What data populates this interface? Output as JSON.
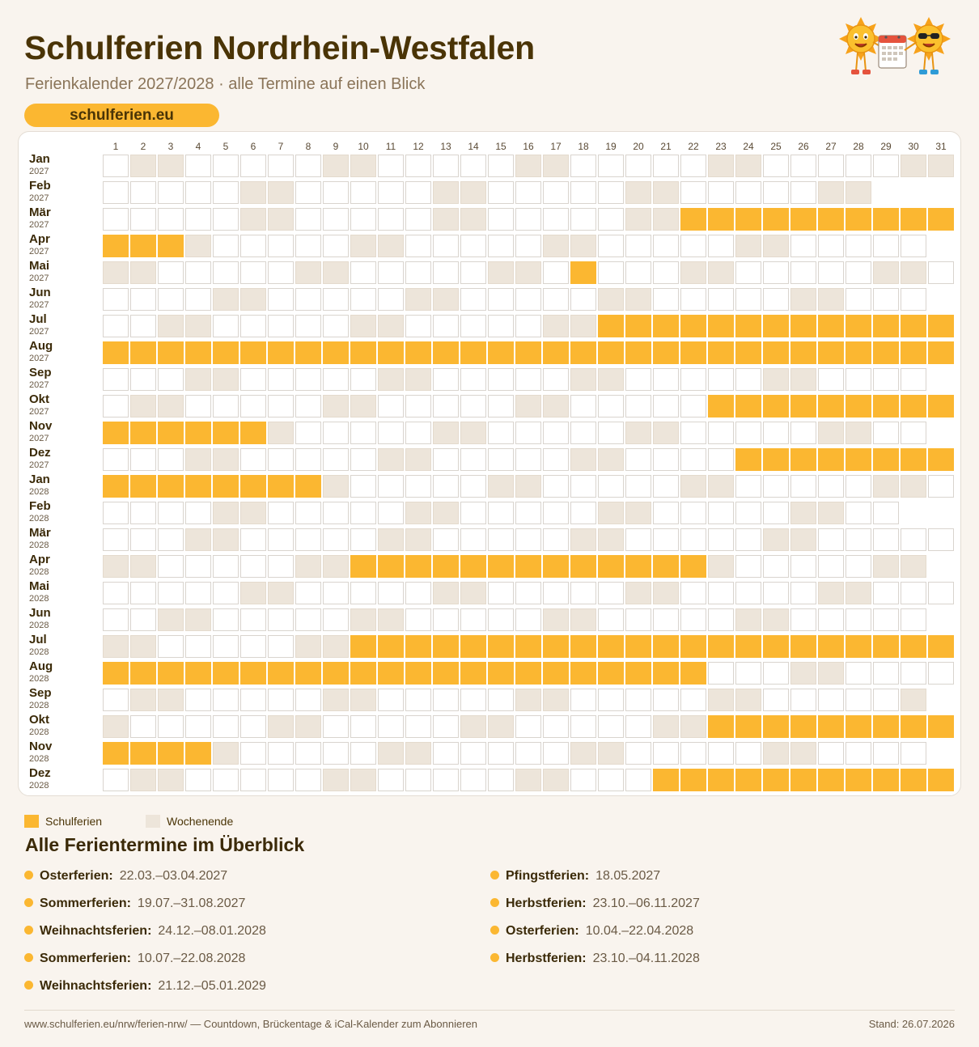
{
  "header": {
    "title": "Schulferien Nordrhein-Westfalen",
    "subtitle": "Ferienkalender 2027/2028 · alle Termine auf einen Blick",
    "brand": "schulferien.eu"
  },
  "calendar": {
    "day_numbers": [
      "1",
      "2",
      "3",
      "4",
      "5",
      "6",
      "7",
      "8",
      "9",
      "10",
      "11",
      "12",
      "13",
      "14",
      "15",
      "16",
      "17",
      "18",
      "19",
      "20",
      "21",
      "22",
      "23",
      "24",
      "25",
      "26",
      "27",
      "28",
      "29",
      "30",
      "31"
    ],
    "months": [
      {
        "name": "Jan",
        "year": "2027",
        "days": 31,
        "first_weekday": 4,
        "holidays": []
      },
      {
        "name": "Feb",
        "year": "2027",
        "days": 28,
        "first_weekday": 0,
        "holidays": []
      },
      {
        "name": "Mär",
        "year": "2027",
        "days": 31,
        "first_weekday": 0,
        "holidays": [
          [
            22,
            31
          ]
        ]
      },
      {
        "name": "Apr",
        "year": "2027",
        "days": 30,
        "first_weekday": 3,
        "holidays": [
          [
            1,
            3
          ]
        ]
      },
      {
        "name": "Mai",
        "year": "2027",
        "days": 31,
        "first_weekday": 5,
        "holidays": [
          [
            18,
            18
          ]
        ]
      },
      {
        "name": "Jun",
        "year": "2027",
        "days": 30,
        "first_weekday": 1,
        "holidays": []
      },
      {
        "name": "Jul",
        "year": "2027",
        "days": 31,
        "first_weekday": 3,
        "holidays": [
          [
            19,
            31
          ]
        ]
      },
      {
        "name": "Aug",
        "year": "2027",
        "days": 31,
        "first_weekday": 6,
        "holidays": [
          [
            1,
            31
          ]
        ]
      },
      {
        "name": "Sep",
        "year": "2027",
        "days": 30,
        "first_weekday": 2,
        "holidays": []
      },
      {
        "name": "Okt",
        "year": "2027",
        "days": 31,
        "first_weekday": 4,
        "holidays": [
          [
            23,
            31
          ]
        ]
      },
      {
        "name": "Nov",
        "year": "2027",
        "days": 30,
        "first_weekday": 0,
        "holidays": [
          [
            1,
            6
          ]
        ]
      },
      {
        "name": "Dez",
        "year": "2027",
        "days": 31,
        "first_weekday": 2,
        "holidays": [
          [
            24,
            31
          ]
        ]
      },
      {
        "name": "Jan",
        "year": "2028",
        "days": 31,
        "first_weekday": 5,
        "holidays": [
          [
            1,
            8
          ]
        ]
      },
      {
        "name": "Feb",
        "year": "2028",
        "days": 29,
        "first_weekday": 1,
        "holidays": []
      },
      {
        "name": "Mär",
        "year": "2028",
        "days": 31,
        "first_weekday": 2,
        "holidays": []
      },
      {
        "name": "Apr",
        "year": "2028",
        "days": 30,
        "first_weekday": 5,
        "holidays": [
          [
            10,
            22
          ]
        ]
      },
      {
        "name": "Mai",
        "year": "2028",
        "days": 31,
        "first_weekday": 0,
        "holidays": []
      },
      {
        "name": "Jun",
        "year": "2028",
        "days": 30,
        "first_weekday": 3,
        "holidays": []
      },
      {
        "name": "Jul",
        "year": "2028",
        "days": 31,
        "first_weekday": 5,
        "holidays": [
          [
            10,
            31
          ]
        ]
      },
      {
        "name": "Aug",
        "year": "2028",
        "days": 31,
        "first_weekday": 1,
        "holidays": [
          [
            1,
            22
          ]
        ]
      },
      {
        "name": "Sep",
        "year": "2028",
        "days": 30,
        "first_weekday": 4,
        "holidays": []
      },
      {
        "name": "Okt",
        "year": "2028",
        "days": 31,
        "first_weekday": 6,
        "holidays": [
          [
            23,
            31
          ]
        ]
      },
      {
        "name": "Nov",
        "year": "2028",
        "days": 30,
        "first_weekday": 2,
        "holidays": [
          [
            1,
            4
          ]
        ]
      },
      {
        "name": "Dez",
        "year": "2028",
        "days": 31,
        "first_weekday": 4,
        "holidays": [
          [
            21,
            31
          ]
        ]
      }
    ]
  },
  "legend": {
    "holiday_label": "Schulferien",
    "weekend_label": "Wochenende",
    "holiday_color": "#fbb731",
    "weekend_color": "#ede5da"
  },
  "overview": {
    "heading": "Alle Ferientermine im Überblick",
    "left": [
      {
        "name": "Osterferien:",
        "dates": "22.03.–03.04.2027"
      },
      {
        "name": "Sommerferien:",
        "dates": "19.07.–31.08.2027"
      },
      {
        "name": "Weihnachtsferien:",
        "dates": "24.12.–08.01.2028"
      },
      {
        "name": "Sommerferien:",
        "dates": "10.07.–22.08.2028"
      },
      {
        "name": "Weihnachtsferien:",
        "dates": "21.12.–05.01.2029"
      }
    ],
    "right": [
      {
        "name": "Pfingstferien:",
        "dates": "18.05.2027"
      },
      {
        "name": "Herbstferien:",
        "dates": "23.10.–06.11.2027"
      },
      {
        "name": "Osterferien:",
        "dates": "10.04.–22.04.2028"
      },
      {
        "name": "Herbstferien:",
        "dates": "23.10.–04.11.2028"
      }
    ]
  },
  "footer": {
    "link_text": "www.schulferien.eu/nrw/ferien-nrw/ — Countdown, Brückentage & iCal-Kalender zum Abonnieren",
    "stand": "Stand: 26.07.2026"
  },
  "mascot": {
    "icon": "sun-mascots-calendar-icon"
  }
}
